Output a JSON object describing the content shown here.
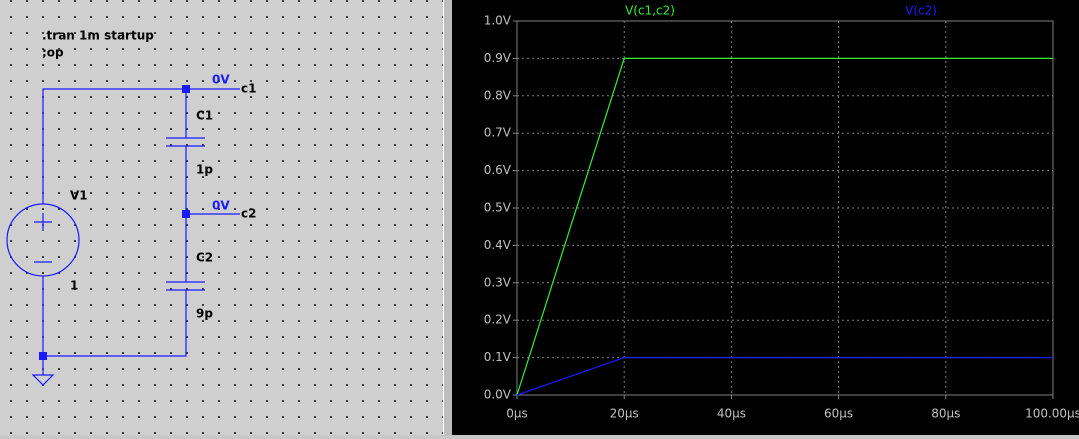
{
  "schematic": {
    "directives": [
      ".tran 1m startup",
      ";op"
    ],
    "components": [
      {
        "name": "V1",
        "value": "1"
      },
      {
        "name": "C1",
        "value": "1p"
      },
      {
        "name": "C2",
        "value": "9p"
      }
    ],
    "nets": [
      {
        "label": "c1",
        "voltage": "0V"
      },
      {
        "label": "c2",
        "voltage": "0V"
      }
    ]
  },
  "chart_data": {
    "type": "line",
    "x": [
      0,
      20,
      100
    ],
    "series": [
      {
        "name": "V(c1,c2)",
        "color": "#33ee33",
        "values": [
          0,
          0.9,
          0.9
        ]
      },
      {
        "name": "V(c2)",
        "color": "#1a1aff",
        "values": [
          0,
          0.1,
          0.1
        ]
      }
    ],
    "xlim": [
      0,
      100
    ],
    "xticks": [
      {
        "value": 0,
        "label": "0µs"
      },
      {
        "value": 20,
        "label": "20µs"
      },
      {
        "value": 40,
        "label": "40µs"
      },
      {
        "value": 60,
        "label": "60µs"
      },
      {
        "value": 80,
        "label": "80µs"
      },
      {
        "value": 100,
        "label": "100.00µs"
      }
    ],
    "ylim": [
      0,
      1
    ],
    "yticks": [
      {
        "value": 0,
        "label": "0.0V"
      },
      {
        "value": 0.1,
        "label": "0.1V"
      },
      {
        "value": 0.2,
        "label": "0.2V"
      },
      {
        "value": 0.3,
        "label": "0.3V"
      },
      {
        "value": 0.4,
        "label": "0.4V"
      },
      {
        "value": 0.5,
        "label": "0.5V"
      },
      {
        "value": 0.6,
        "label": "0.6V"
      },
      {
        "value": 0.7,
        "label": "0.7V"
      },
      {
        "value": 0.8,
        "label": "0.8V"
      },
      {
        "value": 0.9,
        "label": "0.9V"
      },
      {
        "value": 1,
        "label": "1.0V"
      }
    ],
    "grid": true
  }
}
